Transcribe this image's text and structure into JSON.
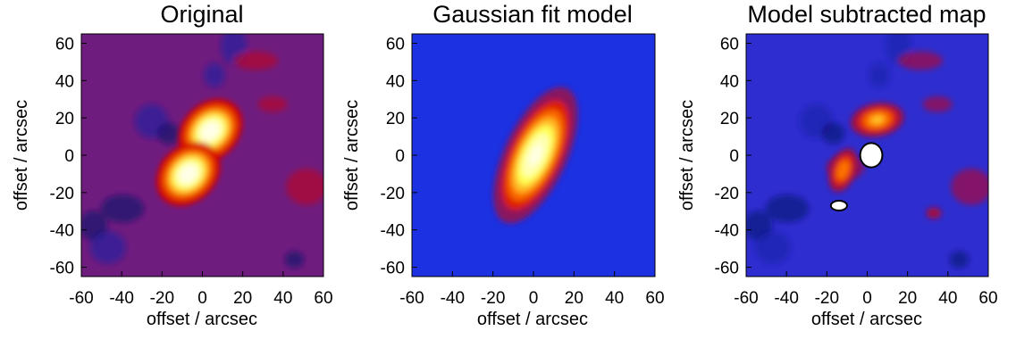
{
  "chart_data": [
    {
      "type": "heatmap",
      "title": "Original",
      "xlabel": "offset / arcsec",
      "ylabel": "offset / arcsec",
      "xlim": [
        -60,
        60
      ],
      "ylim": [
        -65,
        65
      ],
      "xticks": [
        -60,
        -40,
        -20,
        0,
        20,
        40,
        60
      ],
      "yticks": [
        -60,
        -40,
        -20,
        0,
        20,
        40,
        60
      ],
      "colormap": [
        "#000000",
        "#0b0f7a",
        "#1c32e6",
        "#d40000",
        "#ff7a00",
        "#ffff44",
        "#ffffd8",
        "#ffffff"
      ],
      "background_level": 0.35,
      "components": [
        {
          "x": 4,
          "y": 13,
          "sigma_major": 9,
          "sigma_minor": 7,
          "pa": 45,
          "amp": 1.0
        },
        {
          "x": -7,
          "y": -10,
          "sigma_major": 9,
          "sigma_minor": 7,
          "pa": 45,
          "amp": 1.0
        }
      ]
    },
    {
      "type": "heatmap",
      "title": "Gaussian fit model",
      "xlabel": "offset / arcsec",
      "ylabel": "offset / arcsec",
      "xlim": [
        -60,
        60
      ],
      "ylim": [
        -65,
        65
      ],
      "xticks": [
        -60,
        -40,
        -20,
        0,
        20,
        40,
        60
      ],
      "yticks": [
        -60,
        -40,
        -20,
        0,
        20,
        40,
        60
      ],
      "colormap": [
        "#000000",
        "#0b0f7a",
        "#1c32e6",
        "#d40000",
        "#ff7a00",
        "#ffff44",
        "#ffffd8",
        "#ffffff"
      ],
      "background_level": 0.28,
      "components": [
        {
          "x": 1,
          "y": 0,
          "sigma_major": 19,
          "sigma_minor": 8,
          "pa": 65,
          "amp": 0.92
        }
      ]
    },
    {
      "type": "heatmap",
      "title": "Model subtracted map",
      "xlabel": "offset / arcsec",
      "ylabel": "offset / arcsec",
      "xlim": [
        -60,
        60
      ],
      "ylim": [
        -65,
        65
      ],
      "xticks": [
        -60,
        -40,
        -20,
        0,
        20,
        40,
        60
      ],
      "yticks": [
        -60,
        -40,
        -20,
        0,
        20,
        40,
        60
      ],
      "colormap": [
        "#000000",
        "#0b0f7a",
        "#1c32e6",
        "#d40000",
        "#ff7a00",
        "#ffff44",
        "#ffffd8",
        "#ffffff"
      ],
      "background_level": 0.3,
      "components": [
        {
          "x": 5,
          "y": 19,
          "sigma_major": 8,
          "sigma_minor": 5,
          "pa": 10,
          "amp": 0.55
        },
        {
          "x": -12,
          "y": -8,
          "sigma_major": 7,
          "sigma_minor": 4,
          "pa": 70,
          "amp": 0.5
        },
        {
          "x": 33,
          "y": -31,
          "sigma_major": 4,
          "sigma_minor": 3,
          "pa": 0,
          "amp": 0.2
        }
      ],
      "blanked_regions": [
        {
          "x": 2,
          "y": 0,
          "rx": 5.5,
          "ry": 6.5
        },
        {
          "x": -14,
          "y": -27,
          "rx": 4,
          "ry": 2.6
        }
      ]
    }
  ]
}
